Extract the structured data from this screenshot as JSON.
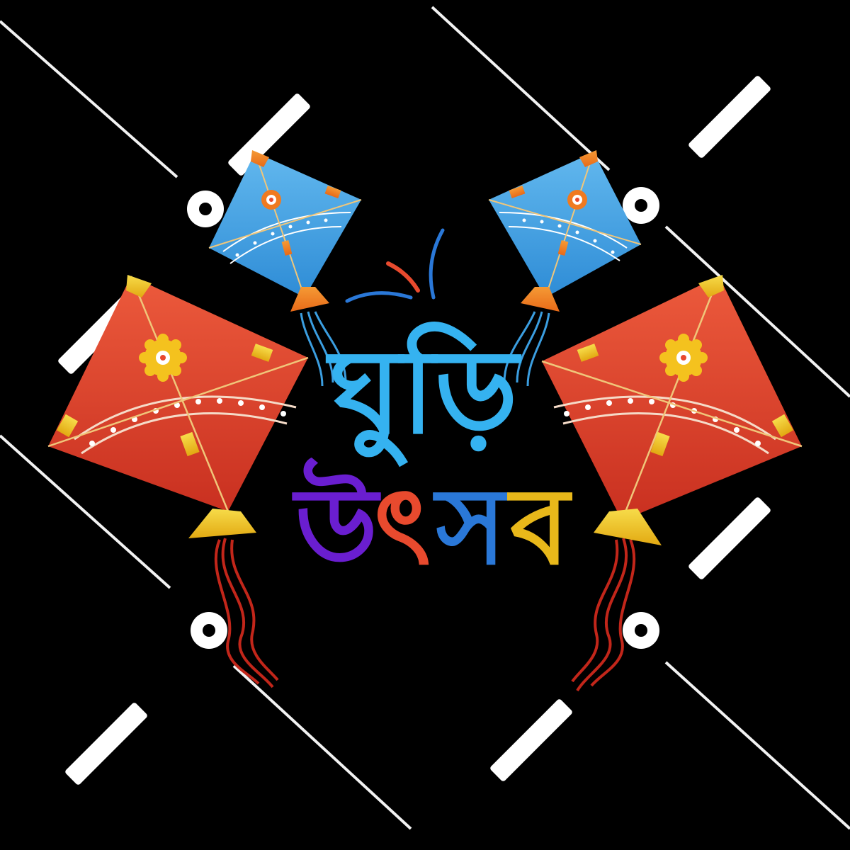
{
  "artwork": {
    "title_line_1": "ঘুড়ি",
    "title_line_2": {
      "glyphs": [
        "উ",
        "ৎ",
        "স",
        "ব"
      ]
    }
  },
  "colors": {
    "background": "#000000",
    "blue_kite": "#3b9ee0",
    "blue_kite_light": "#5ab4ee",
    "red_kite": "#e8482e",
    "red_kite_dark": "#c4311f",
    "gold": "#f0c020",
    "orange": "#f07a20",
    "title_cyan": "#35b2f0",
    "title_purple": "#6a1ed0",
    "title_red": "#e84a2e",
    "title_blue": "#2a78d8",
    "title_gold": "#e8b81a",
    "watermark": "#ffffff"
  },
  "icons": {
    "kite": "kite-icon",
    "flower": "flower-icon",
    "burst": "burst-lines-icon"
  }
}
